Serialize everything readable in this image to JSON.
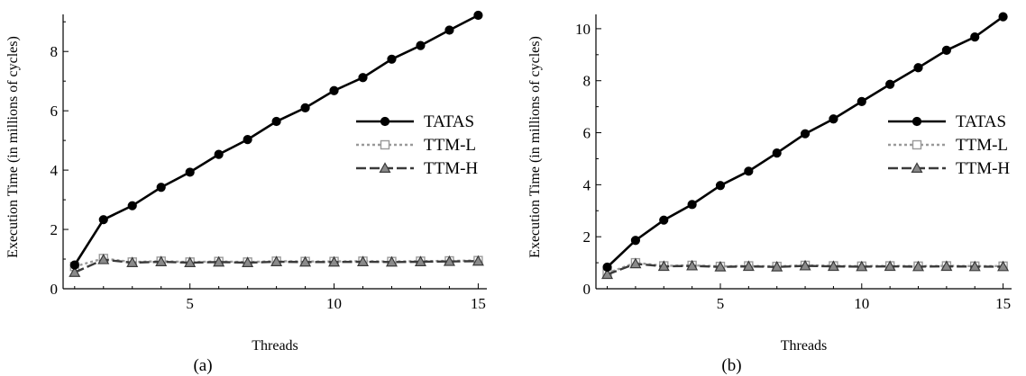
{
  "chart_data": [
    {
      "type": "line",
      "caption": "(a)",
      "xlabel": "Threads",
      "ylabel": "Execution Time (in millions of cycles)",
      "xlim": [
        0.6,
        15.3
      ],
      "ylim": [
        0,
        9.25
      ],
      "xticks": [
        5,
        10,
        15
      ],
      "yticks": [
        0,
        2,
        4,
        6,
        8
      ],
      "grid": false,
      "legend_position": "right",
      "x": [
        1,
        2,
        3,
        4,
        5,
        6,
        7,
        8,
        9,
        10,
        11,
        12,
        13,
        14,
        15
      ],
      "series": [
        {
          "name": "TATAS",
          "values": [
            0.8,
            2.33,
            2.8,
            3.42,
            3.93,
            4.53,
            5.03,
            5.64,
            6.1,
            6.68,
            7.12,
            7.74,
            8.2,
            8.72,
            9.22
          ]
        },
        {
          "name": "TTM-L",
          "values": [
            0.75,
            1.02,
            0.9,
            0.93,
            0.9,
            0.92,
            0.9,
            0.93,
            0.92,
            0.92,
            0.93,
            0.92,
            0.93,
            0.94,
            0.95
          ]
        },
        {
          "name": "TTM-H",
          "values": [
            0.55,
            0.98,
            0.88,
            0.91,
            0.88,
            0.9,
            0.88,
            0.91,
            0.9,
            0.9,
            0.91,
            0.9,
            0.91,
            0.92,
            0.93
          ]
        }
      ]
    },
    {
      "type": "line",
      "caption": "(b)",
      "xlabel": "Threads",
      "ylabel": "Execution Time (in millions of cycles)",
      "xlim": [
        0.6,
        15.3
      ],
      "ylim": [
        0,
        10.55
      ],
      "xticks": [
        5,
        10,
        15
      ],
      "yticks": [
        0,
        2,
        4,
        6,
        8,
        10
      ],
      "grid": false,
      "legend_position": "right",
      "x": [
        1,
        2,
        3,
        4,
        5,
        6,
        7,
        8,
        9,
        10,
        11,
        12,
        13,
        14,
        15
      ],
      "series": [
        {
          "name": "TATAS",
          "values": [
            0.83,
            1.86,
            2.64,
            3.24,
            3.97,
            4.52,
            5.22,
            5.96,
            6.53,
            7.2,
            7.86,
            8.5,
            9.17,
            9.68,
            10.46
          ]
        },
        {
          "name": "TTM-L",
          "values": [
            0.6,
            1.0,
            0.88,
            0.9,
            0.86,
            0.88,
            0.86,
            0.9,
            0.88,
            0.87,
            0.88,
            0.87,
            0.88,
            0.87,
            0.87
          ]
        },
        {
          "name": "TTM-H",
          "values": [
            0.55,
            0.96,
            0.86,
            0.88,
            0.84,
            0.86,
            0.84,
            0.88,
            0.86,
            0.85,
            0.86,
            0.85,
            0.86,
            0.85,
            0.85
          ]
        }
      ]
    }
  ],
  "styles": {
    "TATAS": {
      "color": "#000000",
      "dash": "",
      "marker": "circle"
    },
    "TTM-L": {
      "color": "#9a9a9a",
      "dash": "3,3",
      "marker": "square"
    },
    "TTM-H": {
      "color": "#3a3a3a",
      "dash": "11,4",
      "marker": "triangle"
    }
  }
}
